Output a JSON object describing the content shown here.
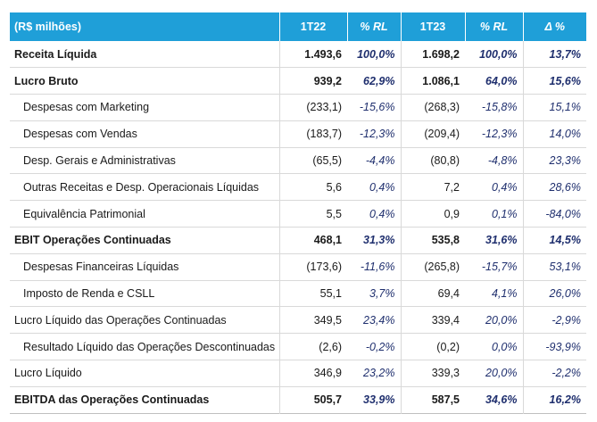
{
  "table": {
    "headers": {
      "label": "(R$ milhões)",
      "period1": "1T22",
      "pct1": "% RL",
      "period2": "1T23",
      "pct2": "% RL",
      "delta": "Δ %"
    },
    "rows": [
      {
        "label": "Receita Líquida",
        "v1": "1.493,6",
        "p1": "100,0%",
        "v2": "1.698,2",
        "p2": "100,0%",
        "d": "13,7%",
        "bold": true,
        "indent": false
      },
      {
        "label": "Lucro Bruto",
        "v1": "939,2",
        "p1": "62,9%",
        "v2": "1.086,1",
        "p2": "64,0%",
        "d": "15,6%",
        "bold": true,
        "indent": false
      },
      {
        "label": "Despesas com Marketing",
        "v1": "(233,1)",
        "p1": "-15,6%",
        "v2": "(268,3)",
        "p2": "-15,8%",
        "d": "15,1%",
        "bold": false,
        "indent": true
      },
      {
        "label": "Despesas com Vendas",
        "v1": "(183,7)",
        "p1": "-12,3%",
        "v2": "(209,4)",
        "p2": "-12,3%",
        "d": "14,0%",
        "bold": false,
        "indent": true
      },
      {
        "label": "Desp. Gerais e Administrativas",
        "v1": "(65,5)",
        "p1": "-4,4%",
        "v2": "(80,8)",
        "p2": "-4,8%",
        "d": "23,3%",
        "bold": false,
        "indent": true
      },
      {
        "label": "Outras Receitas e Desp. Operacionais Líquidas",
        "v1": "5,6",
        "p1": "0,4%",
        "v2": "7,2",
        "p2": "0,4%",
        "d": "28,6%",
        "bold": false,
        "indent": true
      },
      {
        "label": "Equivalência Patrimonial",
        "v1": "5,5",
        "p1": "0,4%",
        "v2": "0,9",
        "p2": "0,1%",
        "d": "-84,0%",
        "bold": false,
        "indent": true
      },
      {
        "label": "EBIT Operações Continuadas",
        "v1": "468,1",
        "p1": "31,3%",
        "v2": "535,8",
        "p2": "31,6%",
        "d": "14,5%",
        "bold": true,
        "indent": false
      },
      {
        "label": "Despesas Financeiras Líquidas",
        "v1": "(173,6)",
        "p1": "-11,6%",
        "v2": "(265,8)",
        "p2": "-15,7%",
        "d": "53,1%",
        "bold": false,
        "indent": true
      },
      {
        "label": "Imposto de Renda e CSLL",
        "v1": "55,1",
        "p1": "3,7%",
        "v2": "69,4",
        "p2": "4,1%",
        "d": "26,0%",
        "bold": false,
        "indent": true
      },
      {
        "label": "Lucro Líquido das Operações Continuadas",
        "v1": "349,5",
        "p1": "23,4%",
        "v2": "339,4",
        "p2": "20,0%",
        "d": "-2,9%",
        "bold": false,
        "indent": false
      },
      {
        "label": "Resultado Líquido das Operações Descontinuadas",
        "v1": "(2,6)",
        "p1": "-0,2%",
        "v2": "(0,2)",
        "p2": "0,0%",
        "d": "-93,9%",
        "bold": false,
        "indent": true
      },
      {
        "label": "Lucro Líquido",
        "v1": "346,9",
        "p1": "23,2%",
        "v2": "339,3",
        "p2": "20,0%",
        "d": "-2,2%",
        "bold": false,
        "indent": false
      },
      {
        "label": "EBITDA das Operações Continuadas",
        "v1": "505,7",
        "p1": "33,9%",
        "v2": "587,5",
        "p2": "34,6%",
        "d": "16,2%",
        "bold": true,
        "indent": false
      }
    ]
  }
}
